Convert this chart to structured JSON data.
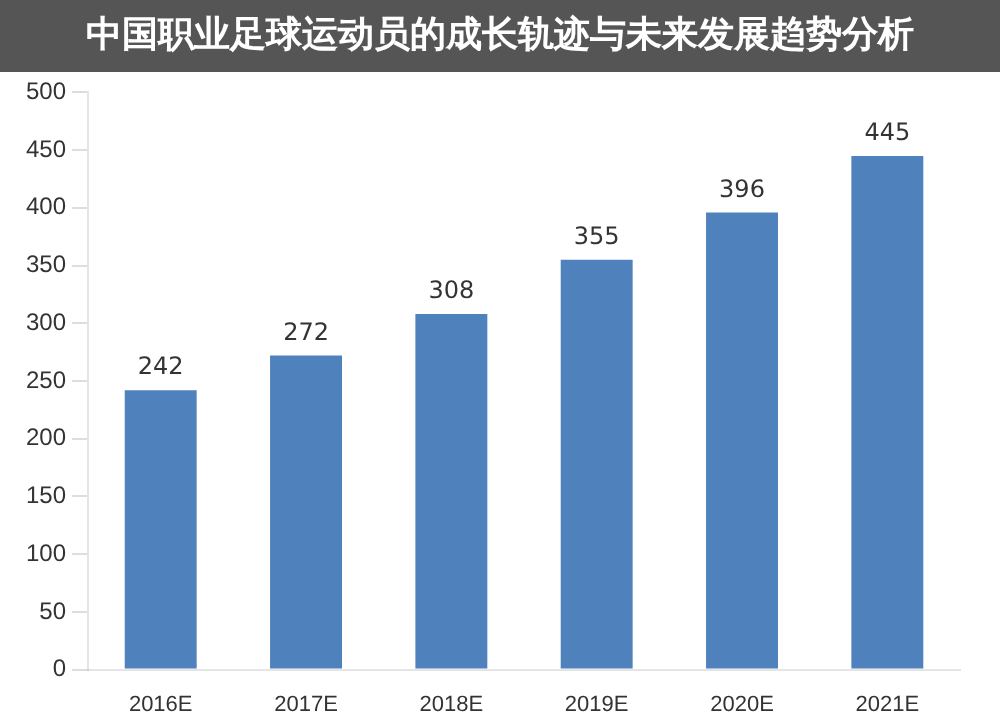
{
  "chart_data": {
    "type": "bar",
    "title": "中国职业足球运动员的成长轨迹与未来发展趋势分析",
    "categories": [
      "2016E",
      "2017E",
      "2018E",
      "2019E",
      "2020E",
      "2021E"
    ],
    "values": [
      242,
      272,
      308,
      355,
      396,
      445
    ],
    "color": "#4f81bd",
    "ylim": [
      0,
      500
    ],
    "yticks": [
      0,
      50,
      100,
      150,
      200,
      250,
      300,
      350,
      400,
      450,
      500
    ],
    "grid": false,
    "data_labels": true
  }
}
